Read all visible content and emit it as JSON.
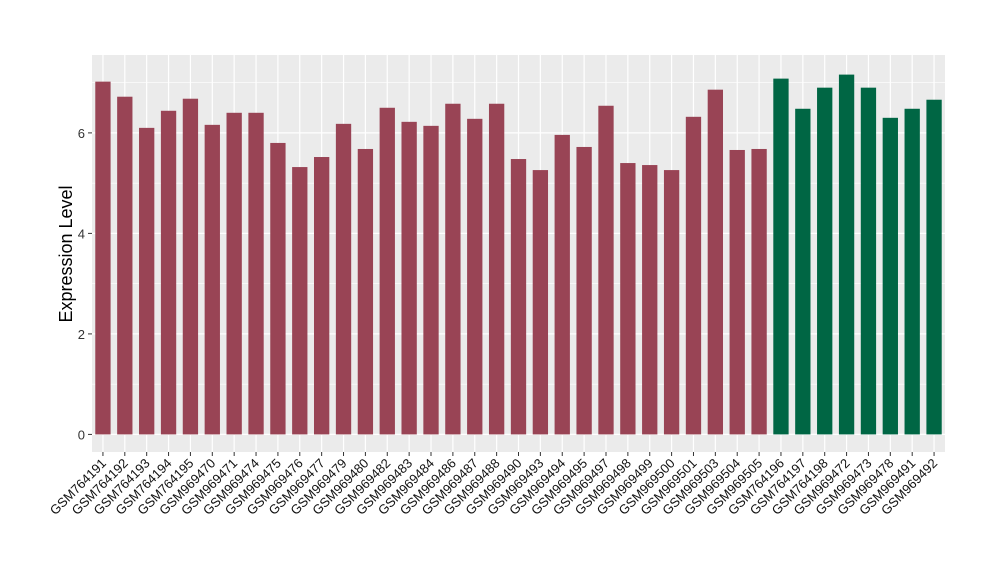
{
  "chart_data": {
    "type": "bar",
    "title": "",
    "xlabel": "",
    "ylabel": "Expression Level",
    "ylim": [
      -0.35,
      7.55
    ],
    "yticks": [
      0,
      2,
      4,
      6
    ],
    "grid": true,
    "legend": "none",
    "colors": {
      "group1": "#994455",
      "group2": "#006644",
      "panel": "#ebebeb",
      "grid": "#ffffff"
    },
    "categories": [
      "GSM764191",
      "GSM764192",
      "GSM764193",
      "GSM764194",
      "GSM764195",
      "GSM969470",
      "GSM969471",
      "GSM969474",
      "GSM969475",
      "GSM969476",
      "GSM969477",
      "GSM969479",
      "GSM969480",
      "GSM969482",
      "GSM969483",
      "GSM969484",
      "GSM969486",
      "GSM969487",
      "GSM969488",
      "GSM969490",
      "GSM969493",
      "GSM969494",
      "GSM969495",
      "GSM969497",
      "GSM969498",
      "GSM969499",
      "GSM969500",
      "GSM969501",
      "GSM969503",
      "GSM969504",
      "GSM969505",
      "GSM764196",
      "GSM764197",
      "GSM764198",
      "GSM969472",
      "GSM969473",
      "GSM969478",
      "GSM969491",
      "GSM969492"
    ],
    "values": [
      7.02,
      6.72,
      6.1,
      6.44,
      6.68,
      6.16,
      6.4,
      6.4,
      5.8,
      5.32,
      5.52,
      6.18,
      5.68,
      6.5,
      6.22,
      6.14,
      6.58,
      6.28,
      6.58,
      5.48,
      5.26,
      5.96,
      5.72,
      6.54,
      5.4,
      5.36,
      5.26,
      6.32,
      6.86,
      5.66,
      5.68,
      7.08,
      6.48,
      6.9,
      7.16,
      6.9,
      6.3,
      6.48,
      6.66
    ],
    "groups": [
      1,
      1,
      1,
      1,
      1,
      1,
      1,
      1,
      1,
      1,
      1,
      1,
      1,
      1,
      1,
      1,
      1,
      1,
      1,
      1,
      1,
      1,
      1,
      1,
      1,
      1,
      1,
      1,
      1,
      1,
      1,
      2,
      2,
      2,
      2,
      2,
      2,
      2,
      2
    ]
  }
}
